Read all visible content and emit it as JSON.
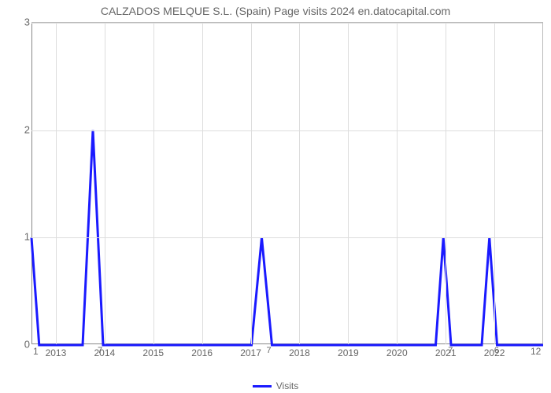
{
  "chart": {
    "type": "line",
    "title": "CALZADOS MELQUE S.L. (Spain) Page visits 2024 en.datocapital.com",
    "title_fontsize": 14,
    "title_color": "#666666",
    "background_color": "#ffffff",
    "plot_border_color": "#bbbbbb",
    "grid_color": "#dddddd",
    "axis_color": "#888888",
    "label_color": "#666666",
    "label_fontsize": 12,
    "line_color": "#1a1aff",
    "line_width": 3,
    "ylim": [
      0,
      3
    ],
    "ytick_step": 1,
    "yticks": [
      0,
      1,
      2,
      3
    ],
    "xticks_years": [
      "2013",
      "2014",
      "2015",
      "2016",
      "2017",
      "2018",
      "2019",
      "2020",
      "2021",
      "2022"
    ],
    "x_start_label": "1",
    "x_end_label": "12",
    "intermediate_markers": [
      "7",
      "7",
      "7",
      "6"
    ],
    "series": {
      "name": "Visits",
      "points": [
        {
          "x": 0.0,
          "y": 1.0
        },
        {
          "x": 0.015,
          "y": 0.0
        },
        {
          "x": 0.1,
          "y": 0.0
        },
        {
          "x": 0.12,
          "y": 2.0
        },
        {
          "x": 0.14,
          "y": 0.0
        },
        {
          "x": 0.43,
          "y": 0.0
        },
        {
          "x": 0.45,
          "y": 1.0
        },
        {
          "x": 0.47,
          "y": 0.0
        },
        {
          "x": 0.79,
          "y": 0.0
        },
        {
          "x": 0.805,
          "y": 1.0
        },
        {
          "x": 0.82,
          "y": 0.0
        },
        {
          "x": 0.88,
          "y": 0.0
        },
        {
          "x": 0.895,
          "y": 1.0
        },
        {
          "x": 0.91,
          "y": 0.0
        },
        {
          "x": 1.0,
          "y": 0.0
        }
      ]
    },
    "legend_label": "Visits"
  }
}
